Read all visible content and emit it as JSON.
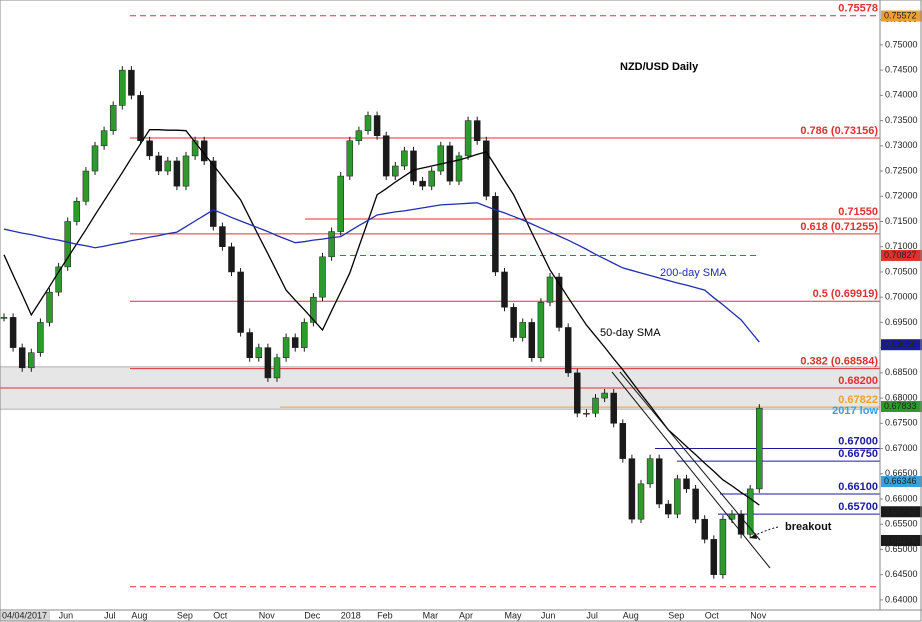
{
  "chart_data": {
    "type": "candlestick",
    "title": "NZD/USD Daily",
    "categories": [
      "04/04/2017",
      null,
      null,
      null,
      null,
      null,
      "Jun",
      null,
      null,
      null,
      null,
      "Jul",
      null,
      null,
      "Aug",
      null,
      null,
      null,
      null,
      "Sep",
      null,
      null,
      null,
      "Oct",
      null,
      null,
      null,
      null,
      "Nov",
      null,
      null,
      null,
      null,
      "Dec",
      null,
      null,
      null,
      "2018",
      null,
      null,
      null,
      "Feb",
      null,
      null,
      null,
      null,
      "Mar",
      null,
      null,
      null,
      "Apr",
      null,
      null,
      null,
      null,
      "May",
      null,
      null,
      null,
      "Jun",
      null,
      null,
      null,
      null,
      "Jul",
      null,
      null,
      null,
      "Aug",
      null,
      null,
      null,
      null,
      "Sep",
      null,
      null,
      null,
      "Oct",
      null,
      null,
      null,
      null,
      "Nov",
      null
    ],
    "values": [
      0.696,
      0.69,
      0.686,
      0.689,
      0.695,
      0.701,
      0.706,
      0.715,
      0.719,
      0.725,
      0.73,
      0.733,
      0.738,
      0.745,
      0.74,
      0.731,
      0.728,
      0.725,
      0.727,
      0.722,
      0.728,
      0.731,
      0.727,
      0.714,
      0.71,
      0.705,
      0.693,
      0.688,
      0.69,
      0.684,
      0.688,
      0.692,
      0.69,
      0.695,
      0.7,
      0.708,
      0.713,
      0.724,
      0.731,
      0.733,
      0.736,
      0.732,
      0.724,
      0.726,
      0.729,
      0.723,
      0.722,
      0.725,
      0.73,
      0.723,
      0.728,
      0.735,
      0.731,
      0.72,
      0.705,
      0.698,
      0.692,
      0.695,
      0.688,
      0.699,
      0.704,
      0.694,
      0.685,
      0.677,
      0.677,
      0.68,
      0.681,
      0.675,
      0.668,
      0.656,
      0.663,
      0.668,
      0.659,
      0.657,
      0.664,
      0.662,
      0.656,
      0.652,
      0.645,
      0.656,
      0.657,
      0.653,
      0.662,
      0.678
    ],
    "up_color": "#2e9a2e",
    "down_color": "#1a1a1a",
    "series": [
      {
        "name": "50-day SMA",
        "color": "#000000",
        "values": [
          0.7084,
          0.7044,
          0.7005,
          0.6965,
          0.6993,
          0.7021,
          0.705,
          0.7078,
          0.7106,
          0.7134,
          0.7163,
          0.7191,
          0.7219,
          0.7247,
          0.7276,
          0.7304,
          0.7332,
          0.7332,
          0.7331,
          0.7331,
          0.733,
          0.7307,
          0.7284,
          0.7262,
          0.7239,
          0.7216,
          0.7193,
          0.7157,
          0.7121,
          0.7086,
          0.705,
          0.7014,
          0.6994,
          0.6975,
          0.6955,
          0.6935,
          0.6973,
          0.701,
          0.7048,
          0.71,
          0.7151,
          0.7203,
          0.7215,
          0.7228,
          0.724,
          0.7252,
          0.7256,
          0.726,
          0.7264,
          0.7268,
          0.7272,
          0.7277,
          0.7283,
          0.7288,
          0.726,
          0.7231,
          0.7203,
          0.7166,
          0.7128,
          0.7091,
          0.7054,
          0.7027,
          0.6999,
          0.6972,
          0.6945,
          0.6923,
          0.6901,
          0.6878,
          0.6856,
          0.6832,
          0.6808,
          0.6785,
          0.6761,
          0.6737,
          0.6721,
          0.6704,
          0.6688,
          0.6671,
          0.6655,
          0.6638,
          0.6626,
          0.6613,
          0.6601,
          0.6588
        ]
      },
      {
        "name": "200-day SMA",
        "color": "#1f2fb0",
        "values": [
          0.7135,
          0.7131,
          0.7127,
          0.7124,
          0.712,
          0.7116,
          0.7113,
          0.7109,
          0.7105,
          0.7102,
          0.7098,
          0.7101,
          0.7105,
          0.7108,
          0.7112,
          0.7115,
          0.7119,
          0.7122,
          0.7126,
          0.7129,
          0.714,
          0.7151,
          0.7162,
          0.7173,
          0.7166,
          0.7158,
          0.7151,
          0.7144,
          0.7137,
          0.713,
          0.7122,
          0.7115,
          0.7108,
          0.711,
          0.7113,
          0.7115,
          0.7118,
          0.712,
          0.7131,
          0.7142,
          0.7152,
          0.7163,
          0.7166,
          0.7169,
          0.7171,
          0.7174,
          0.7177,
          0.718,
          0.7183,
          0.7184,
          0.7185,
          0.7186,
          0.7187,
          0.718,
          0.7173,
          0.7167,
          0.716,
          0.7153,
          0.7145,
          0.7137,
          0.7129,
          0.7121,
          0.7113,
          0.7104,
          0.7095,
          0.7085,
          0.7076,
          0.7067,
          0.7058,
          0.7053,
          0.7048,
          0.7043,
          0.7038,
          0.7033,
          0.7028,
          0.7024,
          0.7019,
          0.7014,
          0.6999,
          0.6985,
          0.697,
          0.6955,
          0.6933,
          0.6911
        ]
      }
    ],
    "ylim": [
      0.638,
      0.7589
    ],
    "yticks": [
      {
        "value": 0.64,
        "label": "0.64000"
      },
      {
        "value": 0.645,
        "label": "0.64500"
      },
      {
        "value": 0.65,
        "label": "0.65000"
      },
      {
        "value": 0.655,
        "label": "0.65500"
      },
      {
        "value": 0.66,
        "label": "0.66000"
      },
      {
        "value": 0.665,
        "label": "0.66500"
      },
      {
        "value": 0.67,
        "label": "0.67000"
      },
      {
        "value": 0.675,
        "label": "0.67500"
      },
      {
        "value": 0.68,
        "label": "0.68000"
      },
      {
        "value": 0.685,
        "label": "0.68500"
      },
      {
        "value": 0.69,
        "label": "0.69000"
      },
      {
        "value": 0.695,
        "label": "0.69500"
      },
      {
        "value": 0.7,
        "label": "0.70000"
      },
      {
        "value": 0.705,
        "label": "0.70500"
      },
      {
        "value": 0.71,
        "label": "0.71000"
      },
      {
        "value": 0.715,
        "label": "0.71500"
      },
      {
        "value": 0.72,
        "label": "0.72000"
      },
      {
        "value": 0.725,
        "label": "0.72500"
      },
      {
        "value": 0.73,
        "label": "0.73000"
      },
      {
        "value": 0.735,
        "label": "0.73500"
      },
      {
        "value": 0.74,
        "label": "0.74000"
      },
      {
        "value": 0.745,
        "label": "0.74500"
      },
      {
        "value": 0.75,
        "label": "0.75000"
      },
      {
        "value": 0.755,
        "label": "0.75500"
      }
    ],
    "grid": false,
    "zone": [
      0.6778,
      0.6862
    ],
    "levels": [
      {
        "value": 0.75578,
        "color": "#e03030",
        "dashed": true
      },
      {
        "value": 0.73156,
        "label": "0.786 (0.73156)",
        "color": "#e03030"
      },
      {
        "value": 0.7155,
        "label": "0.71550",
        "color": "#e03030"
      },
      {
        "value": 0.71255,
        "label": "0.618 (0.71255)",
        "color": "#e03030"
      },
      {
        "value": 0.70827,
        "color": "#e03030",
        "dashed": true
      },
      {
        "value": 0.69919,
        "label": "0.5 (0.69919)",
        "color": "#e03030"
      },
      {
        "value": 0.68584,
        "label": "0.382 (0.68584)",
        "color": "#e03030"
      },
      {
        "value": 0.682,
        "label": "0.68200",
        "color": "#e03030"
      },
      {
        "value": 0.67822,
        "label": "0.67822",
        "color": "#f0a030"
      },
      {
        "value": 0.67,
        "label": "0.67000",
        "color": "#1a1aa0"
      },
      {
        "value": 0.6675,
        "label": "0.66750",
        "color": "#1a1aa0"
      },
      {
        "value": 0.661,
        "label": "0.66100",
        "color": "#1a1aa0"
      },
      {
        "value": 0.657,
        "label": "0.65700",
        "color": "#1a1aa0"
      },
      {
        "value": 0.64261,
        "color": "#e03030",
        "dashed": true
      }
    ],
    "axis_tags": [
      {
        "value": 0.75572,
        "color": "#f0a030",
        "text_color": "#000000"
      },
      {
        "value": 0.70827,
        "color": "#e03030",
        "text_color": "#ffffff"
      },
      {
        "value": 0.69058,
        "color": "#1a1aa0",
        "text_color": "#ffffff"
      },
      {
        "value": 0.67833,
        "color": "#2e9a2e",
        "text_color": "#ffffff"
      },
      {
        "value": 0.66346,
        "color": "#3aa0d8",
        "text_color": "#ffffff"
      },
      {
        "value": 0.65747,
        "color": "#1a1a1a",
        "text_color": "#ffffff"
      },
      {
        "value": 0.65178,
        "color": "#1a1a1a",
        "text_color": "#ffffff"
      }
    ],
    "annotations": {
      "low": "2017 low",
      "breakout": "breakout"
    }
  }
}
